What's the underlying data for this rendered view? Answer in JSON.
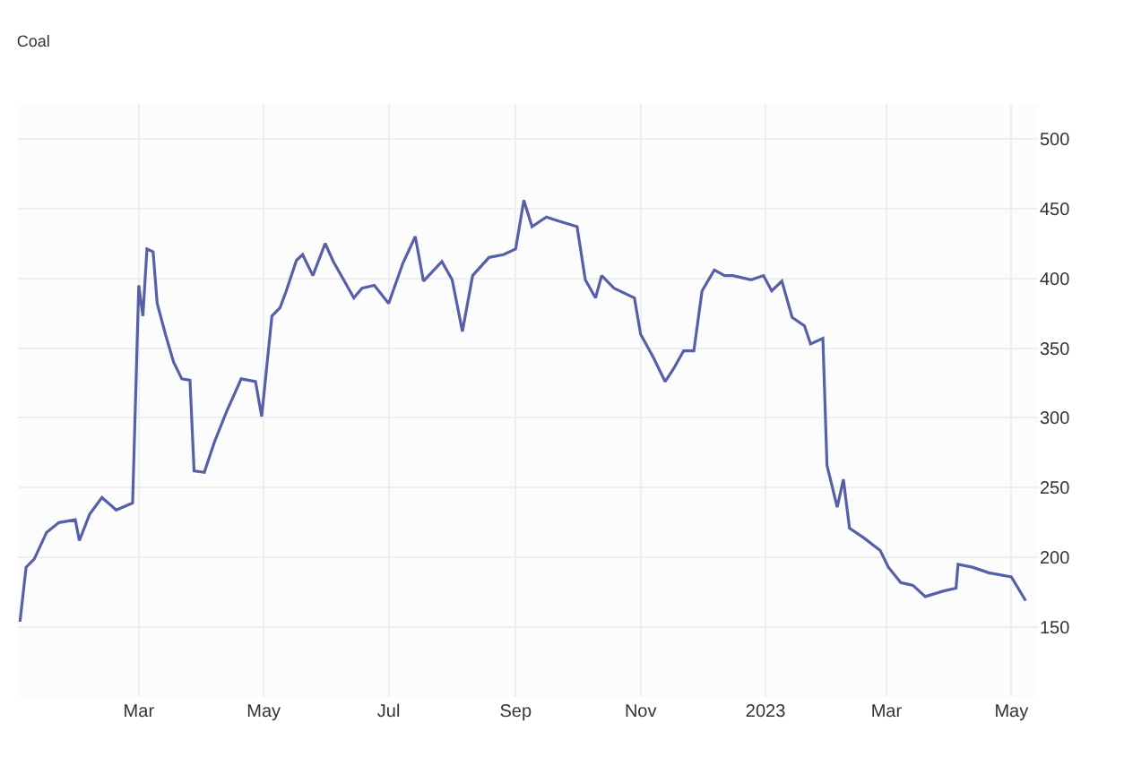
{
  "chart_data": {
    "type": "line",
    "title": "Coal",
    "x": [
      "2022-01-02",
      "2022-01-05",
      "2022-01-09",
      "2022-01-15",
      "2022-01-21",
      "2022-01-29",
      "2022-01-31",
      "2022-02-05",
      "2022-02-11",
      "2022-02-18",
      "2022-02-26",
      "2022-03-01",
      "2022-03-03",
      "2022-03-05",
      "2022-03-08",
      "2022-03-10",
      "2022-03-14",
      "2022-03-18",
      "2022-03-22",
      "2022-03-26",
      "2022-03-28",
      "2022-04-02",
      "2022-04-07",
      "2022-04-13",
      "2022-04-17",
      "2022-04-20",
      "2022-04-27",
      "2022-04-30",
      "2022-05-05",
      "2022-05-09",
      "2022-05-12",
      "2022-05-17",
      "2022-05-20",
      "2022-05-25",
      "2022-05-31",
      "2022-06-04",
      "2022-06-09",
      "2022-06-14",
      "2022-06-18",
      "2022-06-24",
      "2022-07-01",
      "2022-07-08",
      "2022-07-14",
      "2022-07-18",
      "2022-07-27",
      "2022-08-01",
      "2022-08-06",
      "2022-08-11",
      "2022-08-19",
      "2022-08-26",
      "2022-09-01",
      "2022-09-05",
      "2022-09-09",
      "2022-09-16",
      "2022-09-22",
      "2022-10-01",
      "2022-10-05",
      "2022-10-10",
      "2022-10-13",
      "2022-10-19",
      "2022-10-29",
      "2022-11-01",
      "2022-11-07",
      "2022-11-13",
      "2022-11-17",
      "2022-11-22",
      "2022-11-27",
      "2022-12-01",
      "2022-12-07",
      "2022-12-12",
      "2022-12-16",
      "2022-12-25",
      "2022-12-31",
      "2023-01-04",
      "2023-01-09",
      "2023-01-14",
      "2023-01-20",
      "2023-01-23",
      "2023-01-29",
      "2023-01-31",
      "2023-02-05",
      "2023-02-08",
      "2023-02-11",
      "2023-02-18",
      "2023-02-26",
      "2023-03-02",
      "2023-03-08",
      "2023-03-14",
      "2023-03-20",
      "2023-03-29",
      "2023-04-04",
      "2023-04-05",
      "2023-04-12",
      "2023-04-20",
      "2023-05-01",
      "2023-05-08"
    ],
    "series": [
      {
        "color": "#5560a8",
        "values": [
          154,
          193,
          199,
          218,
          225,
          227,
          212,
          231,
          243,
          234,
          239,
          395,
          373,
          421,
          419,
          382,
          360,
          340,
          328,
          327,
          262,
          261,
          283,
          305,
          318,
          328,
          326,
          301,
          373,
          379,
          391,
          413,
          417,
          402,
          425,
          412,
          399,
          386,
          393,
          395,
          382,
          411,
          430,
          398,
          412,
          399,
          362,
          402,
          415,
          417,
          421,
          456,
          437,
          444,
          441,
          437,
          399,
          386,
          402,
          393,
          386,
          360,
          344,
          326,
          335,
          348,
          348,
          391,
          406,
          402,
          402,
          399,
          402,
          391,
          398,
          372,
          366,
          353,
          357,
          266,
          236,
          256,
          221,
          214,
          205,
          193,
          182,
          180,
          172,
          176,
          178,
          195,
          193,
          189,
          186,
          169
        ]
      }
    ],
    "xlim": [
      "2022-01-01",
      "2023-05-14"
    ],
    "xticks": [
      {
        "value": "2022-03-01",
        "label": "Mar"
      },
      {
        "value": "2022-05-01",
        "label": "May"
      },
      {
        "value": "2022-07-01",
        "label": "Jul"
      },
      {
        "value": "2022-09-01",
        "label": "Sep"
      },
      {
        "value": "2022-11-01",
        "label": "Nov"
      },
      {
        "value": "2023-01-01",
        "label": "2023"
      },
      {
        "value": "2023-03-01",
        "label": "Mar"
      },
      {
        "value": "2023-05-01",
        "label": "May"
      }
    ],
    "ylim": [
      100,
      525
    ],
    "yticks": [
      150,
      200,
      250,
      300,
      350,
      400,
      450,
      500
    ],
    "grid": true,
    "line_style": "solid",
    "marker": "none"
  }
}
